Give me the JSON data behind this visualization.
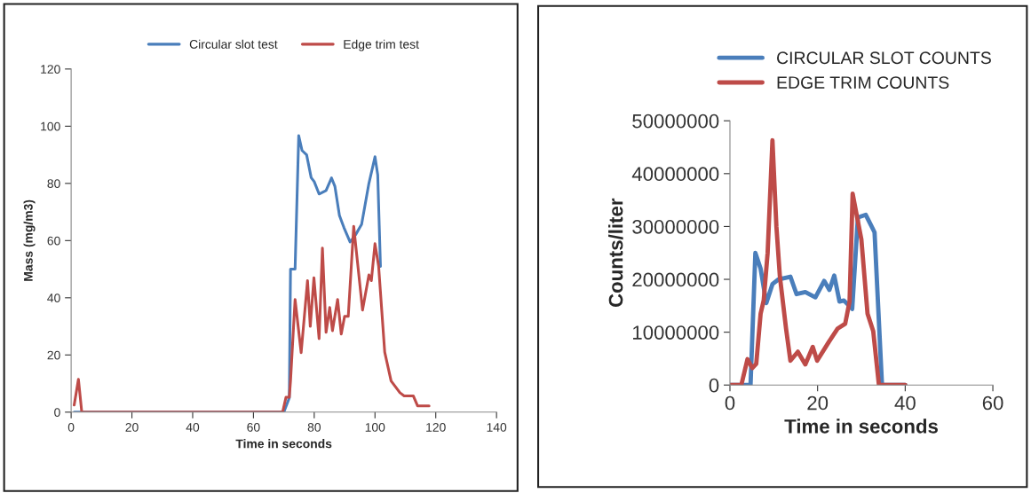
{
  "chart_data": [
    {
      "type": "line",
      "xlabel": "Time in seconds",
      "ylabel": "Mass (mg/m3)",
      "xlim": [
        0,
        140
      ],
      "xticks": [
        0,
        20,
        40,
        60,
        80,
        100,
        120,
        140
      ],
      "ylim": [
        0,
        120
      ],
      "yticks": [
        0,
        20,
        40,
        60,
        80,
        100,
        120
      ],
      "grid": false,
      "legend": "top",
      "marker": "none",
      "line_style": "solid",
      "series": [
        {
          "name": "Circular slot test",
          "color": "#4a7ebb",
          "x": [
            1,
            4,
            70,
            71.8,
            72.2,
            73.7,
            74.9,
            76,
            77.5,
            79,
            80,
            81.6,
            83.9,
            85.7,
            86.8,
            88.3,
            89.8,
            91.8,
            93.6,
            95.6,
            98,
            100,
            100.9,
            101.8
          ],
          "values": [
            0,
            0,
            0,
            5,
            50,
            50,
            96.7,
            91.5,
            90,
            82,
            80.6,
            76.3,
            77.5,
            81.9,
            79,
            68.8,
            64.5,
            59.5,
            62,
            65.7,
            80,
            89.3,
            83,
            51
          ]
        },
        {
          "name": "Edge trim test",
          "color": "#be4b48",
          "x": [
            1,
            2.4,
            3.5,
            69.6,
            70.7,
            71.8,
            72.2,
            73.7,
            75.7,
            77.8,
            78.7,
            79.9,
            81.6,
            82.7,
            83.9,
            85.1,
            86,
            87.7,
            88.9,
            90,
            91.2,
            93,
            95.9,
            98,
            98.8,
            100,
            101.2,
            103.2,
            105.3,
            108.2,
            109.6,
            112.6,
            114,
            117.8
          ],
          "values": [
            2.5,
            11.5,
            0,
            0,
            5.2,
            5.2,
            10.9,
            39.4,
            20.8,
            46,
            30,
            47,
            25.7,
            57.4,
            27.9,
            36.6,
            28.5,
            39.4,
            27.3,
            33.5,
            33.5,
            65,
            35.7,
            48,
            46,
            58.9,
            51,
            21,
            10.9,
            6.8,
            5.7,
            5.7,
            2.2,
            2.2
          ]
        }
      ]
    },
    {
      "type": "line",
      "xlabel": "Time in seconds",
      "ylabel": "Counts/liter",
      "xlim": [
        0,
        60
      ],
      "xticks": [
        0,
        20,
        40,
        60
      ],
      "ylim": [
        0,
        50000000
      ],
      "yticks": [
        0,
        10000000,
        20000000,
        30000000,
        40000000,
        50000000
      ],
      "grid": false,
      "legend": "top left",
      "marker": "none",
      "line_style": "solid",
      "series": [
        {
          "name": "CIRCULAR SLOT COUNTS",
          "color": "#4a7ebb",
          "x": [
            0,
            4.7,
            5.8,
            7.0,
            8.3,
            9.7,
            11.1,
            13.8,
            15.2,
            17.2,
            19.5,
            21.5,
            22.7,
            23.8,
            25,
            26,
            27.9,
            29.2,
            31,
            33,
            34.7,
            40
          ],
          "values": [
            0,
            0,
            25000000,
            22000000,
            15500000,
            19100000,
            20000000,
            20500000,
            17200000,
            17600000,
            16600000,
            19700000,
            18000000,
            20700000,
            15800000,
            16000000,
            14400000,
            31700000,
            32200000,
            28900000,
            0,
            0
          ]
        },
        {
          "name": "EDGE TRIM COUNTS",
          "color": "#be4b48",
          "x": [
            0,
            2.6,
            4,
            5.1,
            6,
            7,
            7.7,
            8.6,
            9.7,
            10.6,
            11.4,
            12.8,
            13.8,
            15.5,
            17.2,
            18.9,
            19.9,
            22.6,
            24.6,
            26.3,
            27.3,
            28,
            30,
            31.4,
            32.7,
            34,
            40
          ],
          "values": [
            0,
            0,
            4900000,
            3200000,
            4000000,
            13500000,
            16000000,
            25000000,
            46300000,
            30000000,
            20500000,
            10700000,
            4600000,
            6300000,
            3900000,
            7200000,
            4600000,
            8200000,
            10700000,
            11600000,
            15800000,
            36200000,
            27500000,
            13500000,
            10200000,
            0,
            0
          ]
        }
      ]
    }
  ]
}
